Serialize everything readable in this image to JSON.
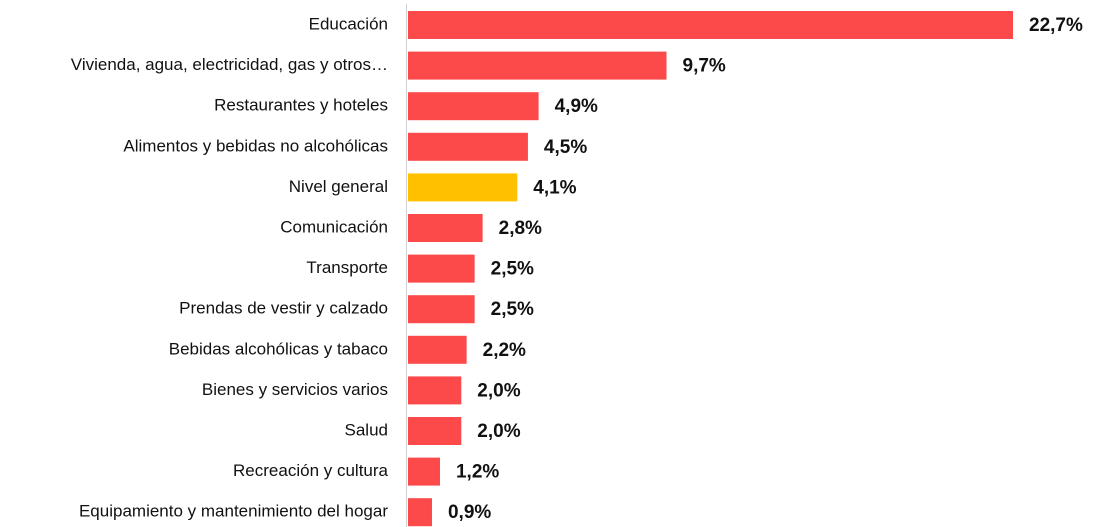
{
  "chart_data": {
    "type": "bar",
    "orientation": "horizontal",
    "categories": [
      "Educación",
      "Vivienda, agua, electricidad, gas y otros…",
      "Restaurantes y hoteles",
      "Alimentos y bebidas no alcohólicas",
      "Nivel general",
      "Comunicación",
      "Transporte",
      "Prendas de vestir y calzado",
      "Bebidas alcohólicas y tabaco",
      "Bienes y servicios varios",
      "Salud",
      "Recreación y cultura",
      "Equipamiento y mantenimiento del hogar"
    ],
    "values": [
      22.7,
      9.7,
      4.9,
      4.5,
      4.1,
      2.8,
      2.5,
      2.5,
      2.2,
      2.0,
      2.0,
      1.2,
      0.9
    ],
    "value_labels": [
      "22,7%",
      "9,7%",
      "4,9%",
      "4,5%",
      "4,1%",
      "2,8%",
      "2,5%",
      "2,5%",
      "2,2%",
      "2,0%",
      "2,0%",
      "1,2%",
      "0,9%"
    ],
    "colors": [
      "#fc4a4a",
      "#fc4a4a",
      "#fc4a4a",
      "#fc4a4a",
      "#ffc000",
      "#fc4a4a",
      "#fc4a4a",
      "#fc4a4a",
      "#fc4a4a",
      "#fc4a4a",
      "#fc4a4a",
      "#fc4a4a",
      "#fc4a4a"
    ]
  }
}
